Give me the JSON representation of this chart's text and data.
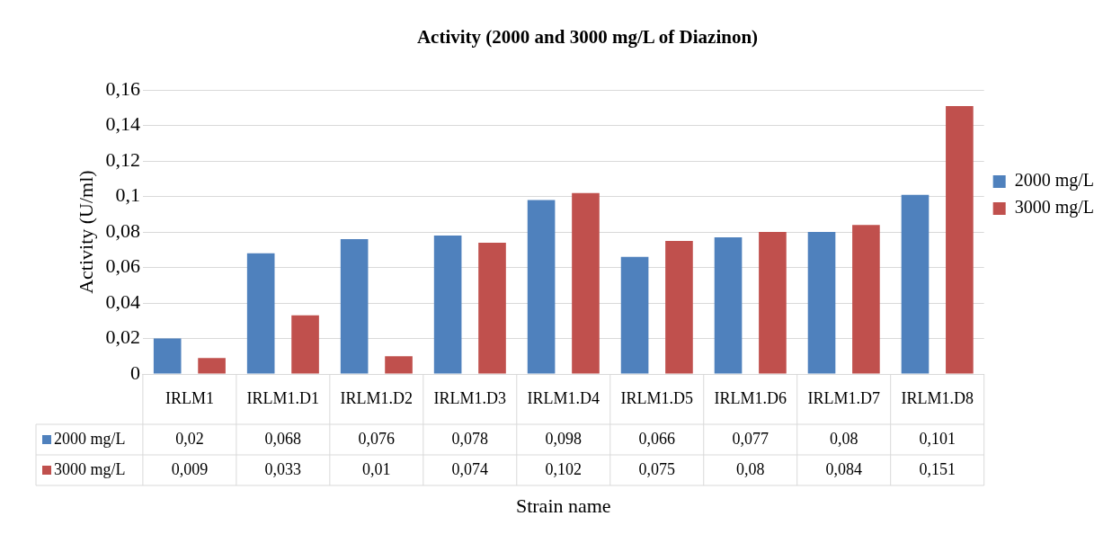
{
  "chart_data": {
    "type": "bar",
    "title": "Activity (2000 and 3000 mg/L of Diazinon)",
    "xlabel": "Strain name",
    "ylabel": "Activity (U/ml)",
    "categories": [
      "IRLM1",
      "IRLM1.D1",
      "IRLM1.D2",
      "IRLM1.D3",
      "IRLM1.D4",
      "IRLM1.D5",
      "IRLM1.D6",
      "IRLM1.D7",
      "IRLM1.D8"
    ],
    "series": [
      {
        "name": "2000 mg/L",
        "color": "#4f81bd",
        "values": [
          0.02,
          0.068,
          0.076,
          0.078,
          0.098,
          0.066,
          0.077,
          0.08,
          0.101
        ],
        "value_labels": [
          "0,02",
          "0,068",
          "0,076",
          "0,078",
          "0,098",
          "0,066",
          "0,077",
          "0,08",
          "0,101"
        ]
      },
      {
        "name": "3000 mg/L",
        "color": "#c0504d",
        "values": [
          0.009,
          0.033,
          0.01,
          0.074,
          0.102,
          0.075,
          0.08,
          0.084,
          0.151
        ],
        "value_labels": [
          "0,009",
          "0,033",
          "0,01",
          "0,074",
          "0,102",
          "0,075",
          "0,08",
          "0,084",
          "0,151"
        ]
      }
    ],
    "ylim": [
      0,
      0.16
    ],
    "yticks": [
      0,
      {
        "value": 0.02,
        "label": "0,02"
      },
      {
        "value": 0.04,
        "label": "0,04"
      },
      {
        "value": 0.06,
        "label": "0,06"
      },
      {
        "value": 0.08,
        "label": "0,08"
      },
      {
        "value": 0.1,
        "label": "0,1"
      },
      {
        "value": 0.12,
        "label": "0,12"
      },
      {
        "value": 0.14,
        "label": "0,14"
      },
      {
        "value": 0.16,
        "label": "0,16"
      }
    ],
    "grid": "y",
    "legend": "right"
  }
}
